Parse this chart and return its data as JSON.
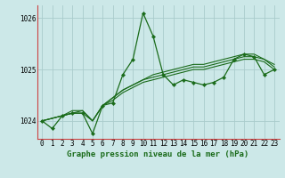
{
  "title": "Graphe pression niveau de la mer (hPa)",
  "bg_color": "#cce8e8",
  "grid_color": "#aacccc",
  "line_color": "#1a6b1a",
  "border_color": "#cc4444",
  "ylim": [
    1023.65,
    1026.25
  ],
  "yticks": [
    1024,
    1025,
    1026
  ],
  "xlim": [
    -0.5,
    23.5
  ],
  "xticks": [
    0,
    1,
    2,
    3,
    4,
    5,
    6,
    7,
    8,
    9,
    10,
    11,
    12,
    13,
    14,
    15,
    16,
    17,
    18,
    19,
    20,
    21,
    22,
    23
  ],
  "series": [
    [
      1024.0,
      1023.85,
      1024.1,
      1024.15,
      1024.15,
      1023.75,
      1024.3,
      1024.35,
      1024.9,
      1025.2,
      1026.1,
      1025.65,
      1024.9,
      1024.7,
      1024.8,
      1024.75,
      1024.7,
      1024.75,
      1024.85,
      1025.2,
      1025.3,
      1025.25,
      1024.9,
      1025.0
    ],
    [
      1024.0,
      1024.05,
      1024.1,
      1024.15,
      1024.15,
      1024.0,
      1024.3,
      1024.4,
      1024.55,
      1024.65,
      1024.75,
      1024.8,
      1024.85,
      1024.9,
      1024.95,
      1025.0,
      1025.0,
      1025.05,
      1025.1,
      1025.15,
      1025.2,
      1025.2,
      1025.15,
      1025.0
    ],
    [
      1024.0,
      1024.05,
      1024.1,
      1024.15,
      1024.2,
      1024.0,
      1024.3,
      1024.45,
      1024.6,
      1024.7,
      1024.8,
      1024.85,
      1024.9,
      1024.95,
      1025.0,
      1025.05,
      1025.05,
      1025.1,
      1025.15,
      1025.2,
      1025.25,
      1025.25,
      1025.2,
      1025.05
    ],
    [
      1024.0,
      1024.05,
      1024.1,
      1024.2,
      1024.2,
      1024.0,
      1024.3,
      1024.45,
      1024.6,
      1024.7,
      1024.8,
      1024.9,
      1024.95,
      1025.0,
      1025.05,
      1025.1,
      1025.1,
      1025.15,
      1025.2,
      1025.25,
      1025.3,
      1025.3,
      1025.2,
      1025.1
    ]
  ],
  "title_fontsize": 6.5,
  "tick_fontsize": 5.5
}
